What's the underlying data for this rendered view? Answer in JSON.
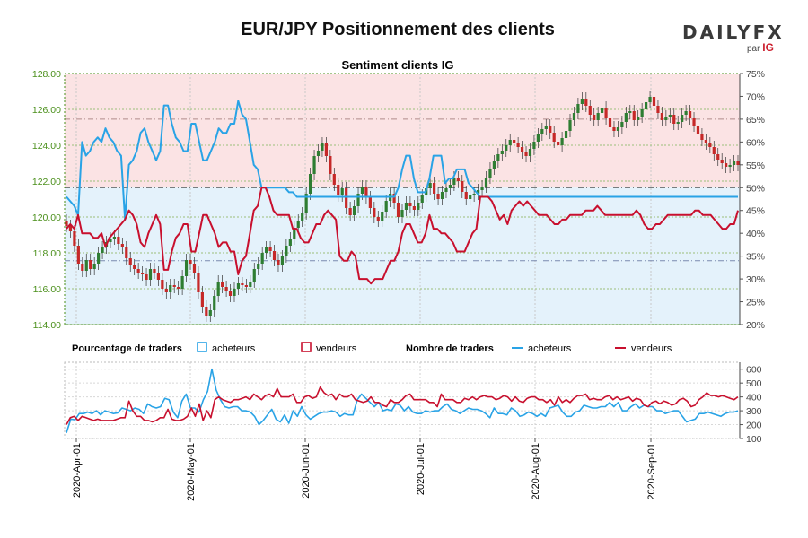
{
  "header": {
    "title": "EUR/JPY Positionnement des clients",
    "logo_text": "DAILYFX",
    "logo_by": "par",
    "logo_ig": "IG"
  },
  "colors": {
    "sell_zone": "#fbe3e4",
    "buy_zone": "#e4f2fb",
    "buyers_line": "#29a3e6",
    "sellers_line": "#c8102e",
    "candle_up": "#2e7d32",
    "candle_down": "#c62828",
    "price_axis_text": "#4a8f1a"
  },
  "chart_data": [
    {
      "type": "line",
      "title": "Sentiment clients IG",
      "price_axis": {
        "ylim": [
          114,
          128
        ],
        "ticks": [
          "114.00",
          "116.00",
          "118.00",
          "120.00",
          "122.00",
          "124.00",
          "126.00",
          "128.00"
        ]
      },
      "pct_axis": {
        "ylim": [
          20,
          75
        ],
        "ticks": [
          "20%",
          "25%",
          "30%",
          "35%",
          "40%",
          "45%",
          "50%",
          "55%",
          "60%",
          "65%",
          "70%",
          "75%"
        ]
      },
      "x_ticks": [
        "2020-Apr-01",
        "2020-May-01",
        "2020-Jun-01",
        "2020-Jul-01",
        "2020-Aug-01",
        "2020-Sep-01"
      ],
      "grid": true,
      "series": [
        {
          "name": "acheteurs",
          "kind": "pct_long",
          "values": [
            48,
            47,
            46,
            44,
            60,
            57,
            58,
            60,
            61,
            60,
            63,
            61,
            60,
            58,
            57,
            43,
            55,
            56,
            58,
            62,
            63,
            60,
            58,
            56,
            58,
            68,
            68,
            64,
            61,
            60,
            58,
            58,
            64,
            64,
            60,
            56,
            56,
            58,
            60,
            63,
            62,
            62,
            64,
            64,
            69,
            66,
            65,
            60,
            55,
            54,
            50,
            50,
            50,
            50,
            50,
            50,
            50,
            49,
            49,
            48,
            48,
            48,
            48,
            48,
            48,
            48,
            48,
            48,
            48,
            48,
            48,
            48,
            48,
            48,
            48,
            48,
            48,
            48,
            48,
            48,
            48,
            48,
            48,
            48,
            48,
            50,
            54,
            57,
            57,
            52,
            49,
            49,
            49,
            52,
            57,
            57,
            57,
            51,
            52,
            52,
            54,
            54,
            54,
            51,
            50,
            49,
            48,
            48,
            48,
            48,
            48,
            48,
            48,
            48,
            48,
            48,
            48,
            48,
            48,
            48,
            48,
            48,
            48,
            48,
            48,
            48,
            48,
            48,
            48,
            48,
            48,
            48,
            48,
            48,
            48,
            48,
            48,
            48,
            48,
            48,
            48,
            48,
            48,
            48,
            48,
            48,
            48,
            48,
            48,
            48,
            48,
            48,
            48,
            48,
            48,
            48,
            48,
            48,
            48,
            48,
            48,
            48,
            48,
            48,
            48,
            48,
            48,
            48,
            48,
            48,
            48,
            48,
            48
          ]
        },
        {
          "name": "vendeurs",
          "kind": "pct_short",
          "values": [
            41,
            42,
            41,
            44,
            40,
            40,
            40,
            39,
            39,
            40,
            37,
            39,
            40,
            41,
            42,
            43,
            45,
            44,
            42,
            38,
            37,
            40,
            42,
            44,
            42,
            32,
            32,
            36,
            39,
            40,
            42,
            42,
            36,
            36,
            40,
            44,
            44,
            42,
            40,
            37,
            38,
            38,
            36,
            36,
            31,
            34,
            35,
            40,
            45,
            46,
            50,
            50,
            48,
            45,
            44,
            44,
            44,
            44,
            41,
            41,
            39,
            38,
            38,
            40,
            42,
            42,
            44,
            45,
            44,
            43,
            35,
            34,
            34,
            36,
            35,
            30,
            30,
            30,
            29,
            30,
            30,
            30,
            32,
            34,
            34,
            36,
            40,
            42,
            42,
            40,
            38,
            38,
            40,
            44,
            41,
            41,
            40,
            40,
            39,
            38,
            36,
            36,
            36,
            38,
            40,
            41,
            48,
            48,
            48,
            47,
            45,
            43,
            44,
            42,
            45,
            46,
            47,
            46,
            47,
            46,
            45,
            44,
            44,
            44,
            43,
            42,
            42,
            43,
            43,
            44,
            44,
            44,
            44,
            45,
            45,
            45,
            46,
            45,
            44,
            44,
            44,
            44,
            44,
            44,
            44,
            44,
            45,
            44,
            42,
            41,
            41,
            42,
            42,
            43,
            44,
            44,
            44,
            44,
            44,
            44,
            44,
            45,
            45,
            44,
            44,
            44,
            43,
            42,
            41,
            41,
            42,
            42,
            45
          ]
        },
        {
          "name": "acheteurs",
          "kind": "count_long",
          "values": [
            140,
            240,
            235,
            280,
            280,
            290,
            280,
            300,
            270,
            300,
            290,
            280,
            285,
            320,
            310,
            300,
            320,
            310,
            280,
            350,
            330,
            320,
            330,
            390,
            380,
            290,
            250,
            370,
            420,
            320,
            320,
            290,
            380,
            440,
            600,
            450,
            380,
            330,
            320,
            330,
            330,
            300,
            300,
            290,
            260,
            200,
            230,
            270,
            310,
            240,
            220,
            270,
            210,
            300,
            260,
            330,
            270,
            240,
            260,
            280,
            290,
            290,
            300,
            290,
            260,
            280,
            270,
            270,
            380,
            420,
            390,
            360,
            330,
            360,
            300,
            310,
            300,
            350,
            340,
            300,
            330,
            290,
            280,
            280,
            300,
            290,
            300,
            300,
            330,
            350,
            310,
            300,
            280,
            300,
            320,
            310,
            310,
            300,
            280,
            250,
            320,
            280,
            280,
            270,
            320,
            300,
            260,
            270,
            290,
            280,
            260,
            280,
            260,
            320,
            330,
            340,
            290,
            260,
            260,
            290,
            300,
            340,
            330,
            320,
            320,
            330,
            330,
            360,
            330,
            360,
            300,
            300,
            330,
            350,
            320,
            340,
            330,
            330,
            300,
            300,
            280,
            290,
            300,
            300,
            260,
            220,
            230,
            240,
            280,
            280,
            290,
            280,
            270,
            260,
            280,
            290,
            290,
            300
          ]
        },
        {
          "name": "vendeurs",
          "kind": "count_short",
          "values": [
            200,
            250,
            260,
            230,
            260,
            250,
            240,
            230,
            240,
            230,
            230,
            230,
            230,
            240,
            250,
            250,
            370,
            300,
            260,
            260,
            230,
            230,
            220,
            230,
            250,
            250,
            310,
            240,
            230,
            230,
            240,
            260,
            320,
            260,
            350,
            230,
            300,
            250,
            380,
            400,
            380,
            370,
            360,
            380,
            380,
            390,
            400,
            380,
            420,
            400,
            380,
            410,
            420,
            400,
            460,
            400,
            400,
            400,
            420,
            360,
            360,
            400,
            410,
            390,
            400,
            470,
            430,
            410,
            420,
            380,
            420,
            400,
            400,
            420,
            380,
            370,
            360,
            370,
            400,
            360,
            360,
            340,
            330,
            380,
            360,
            360,
            380,
            410,
            420,
            380,
            380,
            380,
            380,
            360,
            360,
            330,
            420,
            380,
            380,
            380,
            360,
            360,
            390,
            380,
            400,
            380,
            400,
            410,
            400,
            400,
            380,
            390,
            410,
            400,
            370,
            400,
            370,
            360,
            390,
            400,
            400,
            380,
            380,
            360,
            380,
            340,
            400,
            360,
            380,
            360,
            390,
            410,
            410,
            420,
            380,
            390,
            380,
            380,
            400,
            410,
            380,
            400,
            380,
            390,
            400,
            370,
            390,
            380,
            340,
            330,
            360,
            370,
            350,
            370,
            360,
            340,
            350,
            380,
            390,
            370,
            330,
            340,
            380,
            400,
            430,
            410,
            410,
            400,
            410,
            400,
            390,
            380,
            400
          ]
        }
      ]
    },
    {
      "type": "candlestick",
      "name": "EUR/JPY",
      "closes": [
        119.5,
        119.2,
        118.4,
        117.4,
        117.0,
        117.6,
        117.1,
        117.4,
        118.0,
        118.3,
        118.6,
        118.8,
        118.9,
        118.5,
        118.3,
        117.7,
        117.3,
        117.1,
        116.9,
        116.8,
        116.5,
        117.1,
        116.9,
        116.5,
        116.0,
        115.8,
        116.2,
        116.1,
        116.0,
        116.7,
        117.6,
        117.4,
        116.9,
        115.8,
        115.0,
        114.5,
        114.8,
        115.6,
        116.4,
        116.1,
        115.9,
        115.6,
        116.0,
        116.3,
        116.2,
        116.1,
        116.4,
        117.1,
        117.4,
        118.0,
        118.3,
        118.1,
        117.6,
        117.3,
        117.8,
        118.4,
        118.8,
        119.4,
        119.8,
        120.2,
        121.3,
        122.4,
        123.4,
        123.7,
        124.1,
        123.4,
        122.4,
        121.8,
        121.2,
        121.6,
        120.5,
        120.1,
        120.6,
        121.3,
        121.7,
        121.1,
        120.5,
        120.0,
        119.8,
        120.3,
        120.9,
        121.3,
        120.8,
        120.0,
        120.4,
        120.8,
        120.6,
        120.4,
        120.8,
        121.2,
        121.6,
        121.9,
        121.3,
        121.0,
        121.4,
        121.6,
        121.8,
        122.2,
        122.0,
        121.4,
        121.0,
        121.2,
        121.3,
        121.5,
        121.7,
        122.2,
        122.7,
        123.1,
        123.5,
        123.7,
        124.0,
        124.3,
        124.1,
        123.9,
        123.6,
        123.4,
        123.8,
        124.2,
        124.6,
        124.9,
        125.1,
        124.7,
        124.2,
        124.0,
        124.4,
        124.8,
        125.4,
        125.8,
        126.3,
        126.6,
        126.2,
        125.7,
        125.4,
        125.8,
        126.1,
        125.5,
        125.0,
        124.8,
        125.0,
        125.3,
        125.8,
        125.9,
        125.4,
        125.6,
        126.0,
        126.4,
        126.7,
        126.2,
        125.8,
        125.4,
        125.6,
        125.7,
        125.2,
        125.3,
        125.7,
        125.9,
        125.5,
        125.1,
        124.6,
        124.3,
        124.1,
        123.9,
        123.5,
        123.2,
        123.0,
        122.8,
        122.9,
        123.1,
        122.9
      ]
    }
  ],
  "legend": {
    "pct_title": "Pourcentage de traders",
    "pct_buy": "acheteurs",
    "pct_sell": "vendeurs",
    "num_title": "Nombre de traders",
    "num_buy": "acheteurs",
    "num_sell": "vendeurs"
  },
  "count_axis": {
    "ylim": [
      100,
      650
    ],
    "ticks": [
      "100",
      "200",
      "300",
      "400",
      "500",
      "600"
    ]
  }
}
